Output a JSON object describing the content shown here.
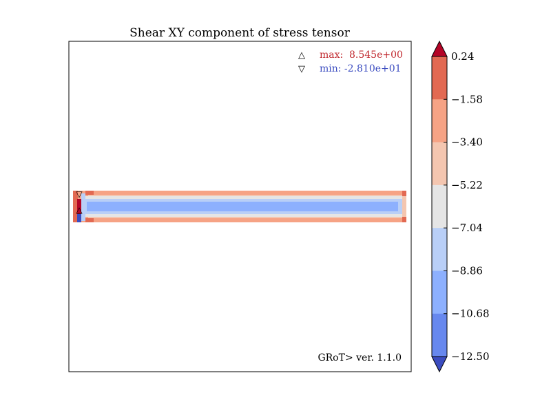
{
  "chart_data": {
    "type": "heatmap",
    "title": "Shear XY component of stress tensor",
    "annotations": {
      "max": {
        "symbol": "△",
        "label": "max:",
        "value": "8.545e+00",
        "color": "#c0272d"
      },
      "min": {
        "symbol": "▽",
        "label": "min: -2.810e+01",
        "color": "#3b4cc0"
      }
    },
    "version_text": "GRoT> ver. 1.1.0",
    "colorbar": {
      "ticks": [
        "0.24",
        "−1.58",
        "−3.40",
        "−5.22",
        "−7.04",
        "−8.86",
        "−10.68",
        "−12.50"
      ],
      "tick_values": [
        0.24,
        -1.58,
        -3.4,
        -5.22,
        -7.04,
        -8.86,
        -10.68,
        -12.5
      ],
      "colors": [
        "#e26952",
        "#f6a385",
        "#f4c6b0",
        "#e5e5e5",
        "#b9cff7",
        "#8db0fe",
        "#6788ee"
      ],
      "extend_top_color": "#b40426",
      "extend_bottom_color": "#3b4cc0",
      "extend": "both"
    },
    "field_bands": [
      {
        "region": "outer",
        "value": -2.0,
        "color": "#f6a385"
      },
      {
        "region": "mid",
        "value": -5.0,
        "color": "#f4c6b0"
      },
      {
        "region": "light",
        "value": -7.0,
        "color": "#e5e5e5"
      },
      {
        "region": "pale-blue",
        "value": -8.5,
        "color": "#b9cff7"
      },
      {
        "region": "core",
        "value": -10.0,
        "color": "#8db0fe"
      }
    ]
  }
}
